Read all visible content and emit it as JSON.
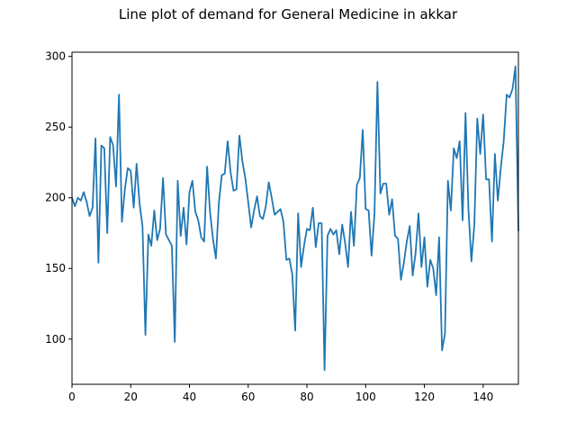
{
  "chart_data": {
    "type": "line",
    "title": "Line plot of demand for General Medicine in akkar",
    "xlabel": "",
    "ylabel": "",
    "xlim": [
      0,
      152
    ],
    "ylim": [
      68,
      303
    ],
    "xticks": [
      0,
      20,
      40,
      60,
      80,
      100,
      120,
      140
    ],
    "yticks": [
      100,
      150,
      200,
      250,
      300
    ],
    "grid": false,
    "line_color": "#1f77b4",
    "series": [
      {
        "x": [
          0,
          1,
          2,
          3,
          4,
          5,
          6,
          7,
          8,
          9,
          10,
          11,
          12,
          13,
          14,
          15,
          16,
          17,
          18,
          19,
          20,
          21,
          22,
          23,
          24,
          25,
          26,
          27,
          28,
          29,
          30,
          31,
          32,
          33,
          34,
          35,
          36,
          37,
          38,
          39,
          40,
          41,
          42,
          43,
          44,
          45,
          46,
          47,
          48,
          49,
          50,
          51,
          52,
          53,
          54,
          55,
          56,
          57,
          58,
          59,
          60,
          61,
          62,
          63,
          64,
          65,
          66,
          67,
          68,
          69,
          70,
          71,
          72,
          73,
          74,
          75,
          76,
          77,
          78,
          79,
          80,
          81,
          82,
          83,
          84,
          85,
          86,
          87,
          88,
          89,
          90,
          91,
          92,
          93,
          94,
          95,
          96,
          97,
          98,
          99,
          100,
          101,
          102,
          103,
          104,
          105,
          106,
          107,
          108,
          109,
          110,
          111,
          112,
          113,
          114,
          115,
          116,
          117,
          118,
          119,
          120,
          121,
          122,
          123,
          124,
          125,
          126,
          127,
          128,
          129,
          130,
          131,
          132,
          133,
          134,
          135,
          136,
          137,
          138,
          139,
          140,
          141,
          142,
          143,
          144,
          145,
          146,
          147,
          148,
          149,
          150,
          151,
          152
        ],
        "values": [
          200,
          194,
          200,
          198,
          204,
          197,
          187,
          193,
          242,
          154,
          237,
          235,
          175,
          243,
          237,
          208,
          273,
          183,
          206,
          221,
          219,
          193,
          224,
          196,
          180,
          103,
          174,
          166,
          191,
          170,
          178,
          214,
          174,
          170,
          166,
          98,
          212,
          173,
          193,
          167,
          204,
          212,
          190,
          184,
          172,
          169,
          222,
          190,
          171,
          157,
          196,
          216,
          217,
          240,
          218,
          205,
          206,
          244,
          226,
          214,
          197,
          179,
          191,
          201,
          187,
          185,
          194,
          211,
          200,
          188,
          190,
          192,
          183,
          156,
          157,
          146,
          106,
          189,
          151,
          166,
          178,
          177,
          193,
          165,
          182,
          182,
          78,
          173,
          178,
          174,
          177,
          160,
          181,
          168,
          151,
          190,
          166,
          209,
          214,
          248,
          192,
          191,
          159,
          189,
          282,
          203,
          210,
          210,
          188,
          199,
          173,
          171,
          142,
          154,
          169,
          180,
          145,
          161,
          189,
          151,
          172,
          137,
          156,
          150,
          131,
          172,
          92,
          104,
          212,
          191,
          235,
          228,
          240,
          184,
          260,
          191,
          155,
          181,
          256,
          231,
          259,
          213,
          213,
          169,
          231,
          198,
          221,
          240,
          273,
          271,
          277,
          293,
          177
        ]
      }
    ]
  }
}
